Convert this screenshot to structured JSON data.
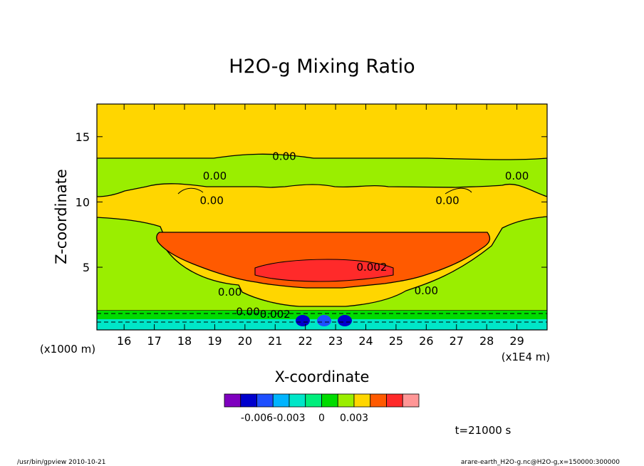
{
  "chart_data": {
    "type": "heatmap",
    "title": "H2O-g Mixing Ratio",
    "xlabel": "X-coordinate",
    "ylabel": "Z-coordinate",
    "x_unit": "(x1E4 m)",
    "y_unit": "(x1000 m)",
    "xlim": [
      15.1,
      30.0
    ],
    "ylim": [
      0.2,
      17.5
    ],
    "x_ticks": [
      16,
      17,
      18,
      19,
      20,
      21,
      22,
      23,
      24,
      25,
      26,
      27,
      28,
      29
    ],
    "y_ticks": [
      5,
      10,
      15
    ],
    "colorbar": {
      "colors": [
        "#7f00bf",
        "#0000cd",
        "#1e4fff",
        "#00b4ff",
        "#00e6c8",
        "#00ee7c",
        "#00dc00",
        "#9aee00",
        "#ffd600",
        "#ff5a00",
        "#ff2a2a",
        "#ff9696"
      ],
      "tick_labels": [
        "-0.006",
        "-0.003",
        "0",
        "0.003"
      ],
      "tick_values": [
        -0.006,
        -0.003,
        0,
        0.003
      ]
    },
    "contour_labels": [
      {
        "text": "0.00",
        "x": 21.3,
        "z": 13.5
      },
      {
        "text": "0.00",
        "x": 19.0,
        "z": 12.0
      },
      {
        "text": "0.00",
        "x": 29.0,
        "z": 12.0
      },
      {
        "text": "0.00",
        "x": 18.9,
        "z": 10.1
      },
      {
        "text": "0.00",
        "x": 26.7,
        "z": 10.1
      },
      {
        "text": "0.002",
        "x": 24.2,
        "z": 5.0
      },
      {
        "text": "0.00",
        "x": 19.5,
        "z": 3.1
      },
      {
        "text": "0.00",
        "x": 26.0,
        "z": 3.2
      },
      {
        "text": "0.00",
        "x": 20.1,
        "z": 1.6
      },
      {
        "text": "0.002",
        "x": 21.0,
        "z": 1.4
      }
    ],
    "time_label": "t=21000 s",
    "footer_left": "/usr/bin/gpview  2010-10-21",
    "footer_right": "arare-earth_H2O-g.nc@H2O-g,x=150000:300000"
  }
}
